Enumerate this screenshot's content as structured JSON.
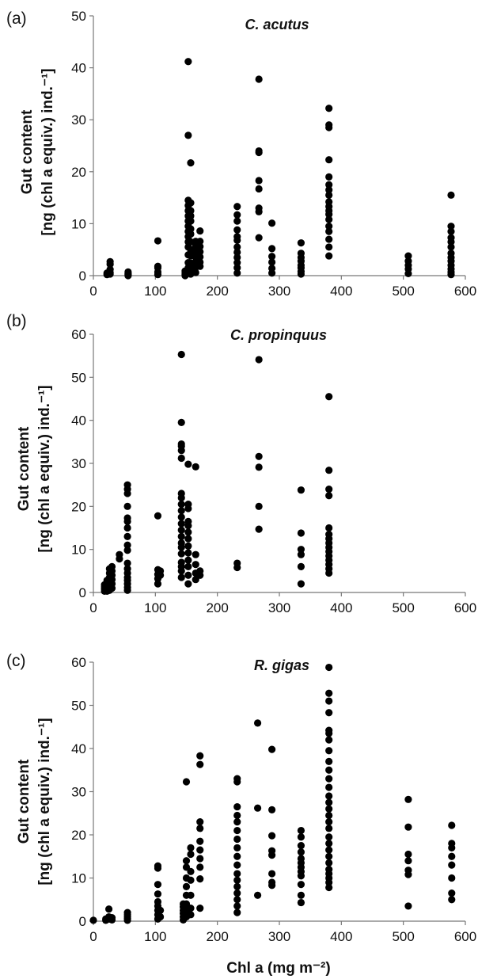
{
  "chart_data": [
    {
      "type": "scatter",
      "panel_label": "(a)",
      "title": "C. acutus",
      "ylabel_line1": "Gut  content",
      "ylabel_line2": "[ng (chl a equiv.) ind.⁻¹]",
      "xlabel": "",
      "xlim": [
        0,
        600
      ],
      "ylim": [
        0,
        50
      ],
      "xticks": [
        "0",
        "100",
        "200",
        "300",
        "400",
        "500",
        "600"
      ],
      "yticks": [
        "0",
        "10",
        "20",
        "30",
        "40",
        "50"
      ],
      "grid": false,
      "groups": [
        {
          "x": 22,
          "y": [
            0.2,
            0.5
          ]
        },
        {
          "x": 27,
          "y": [
            0.3,
            0.6,
            1.2,
            2.2,
            2.7
          ]
        },
        {
          "x": 56,
          "y": [
            0.0,
            0.2,
            0.4,
            0.7
          ]
        },
        {
          "x": 104,
          "y": [
            0.2,
            0.7,
            1.5,
            1.8,
            6.7
          ]
        },
        {
          "x": 148,
          "y": [
            0.0,
            0.2,
            0.5,
            0.9
          ]
        },
        {
          "x": 153,
          "y": [
            0.5,
            1.5,
            2.5,
            4.0,
            5.5,
            6.5,
            7.5,
            8.5,
            9.5,
            10.5,
            11.5,
            12.5,
            13.5,
            14.5,
            27.0,
            41.2
          ]
        },
        {
          "x": 157,
          "y": [
            0.3,
            1.2,
            2.4,
            3.8,
            5.0,
            6.5,
            8.0,
            9.0,
            10.5,
            11.5,
            12.5,
            14.0,
            21.7
          ]
        },
        {
          "x": 165,
          "y": [
            0.6,
            1.6,
            2.7,
            3.6,
            4.6,
            5.6,
            6.6
          ]
        },
        {
          "x": 172,
          "y": [
            1.8,
            2.6,
            3.6,
            4.6,
            5.6,
            6.6,
            8.6
          ]
        },
        {
          "x": 232,
          "y": [
            0.5,
            1.5,
            2.5,
            3.5,
            4.5,
            5.5,
            6.8,
            7.5,
            8.8,
            10.5,
            11.7,
            13.3
          ]
        },
        {
          "x": 267,
          "y": [
            7.3,
            12.3,
            13.0,
            16.7,
            18.3,
            23.7,
            24.0,
            37.8
          ]
        },
        {
          "x": 288,
          "y": [
            0.5,
            1.4,
            2.6,
            3.7,
            5.2,
            10.1
          ]
        },
        {
          "x": 335,
          "y": [
            0.3,
            0.8,
            1.5,
            2.0,
            2.8,
            3.5,
            4.3,
            6.3
          ]
        },
        {
          "x": 380,
          "y": [
            3.8,
            5.5,
            7.0,
            8.5,
            9.5,
            10.8,
            11.8,
            12.5,
            13.3,
            14.2,
            15.5,
            16.5,
            17.5,
            19.0,
            22.3,
            28.5,
            29.0,
            32.2
          ]
        },
        {
          "x": 508,
          "y": [
            0.4,
            1.3,
            2.0,
            2.8,
            3.8
          ]
        },
        {
          "x": 577,
          "y": [
            0.2,
            0.7,
            1.3,
            2.0,
            2.8,
            3.5,
            4.3,
            5.5,
            6.5,
            7.3,
            8.5,
            9.5,
            15.5
          ]
        }
      ]
    },
    {
      "type": "scatter",
      "panel_label": "(b)",
      "title": "C. propinquus",
      "ylabel_line1": "Gut  content",
      "ylabel_line2": "[ng (chl a equiv.) ind.⁻¹]",
      "xlabel": "",
      "xlim": [
        0,
        600
      ],
      "ylim": [
        0,
        60
      ],
      "xticks": [
        "0",
        "100",
        "200",
        "300",
        "400",
        "500",
        "600"
      ],
      "yticks": [
        "0",
        "10",
        "20",
        "30",
        "40",
        "50",
        "60"
      ],
      "grid": false,
      "groups": [
        {
          "x": 18,
          "y": [
            0.3,
            0.8,
            1.3,
            1.8
          ]
        },
        {
          "x": 22,
          "y": [
            0.3,
            0.8,
            1.5,
            2.2,
            2.8
          ]
        },
        {
          "x": 26,
          "y": [
            0.5,
            1.5,
            2.5,
            3.5,
            4.5,
            5.5
          ]
        },
        {
          "x": 30,
          "y": [
            1.0,
            2.0,
            3.0,
            4.0,
            5.0,
            6.0
          ]
        },
        {
          "x": 42,
          "y": [
            7.8,
            8.8
          ]
        },
        {
          "x": 55,
          "y": [
            0.5,
            1.2,
            2.0,
            2.8,
            3.5,
            4.5,
            5.5,
            6.8,
            9.8,
            11.0,
            13.0,
            15.0,
            16.5,
            17.3,
            20.0,
            23.0,
            24.0,
            25.0
          ]
        },
        {
          "x": 104,
          "y": [
            2.0,
            3.2,
            4.2,
            5.3,
            17.8
          ]
        },
        {
          "x": 108,
          "y": [
            4.0,
            5.0
          ]
        },
        {
          "x": 142,
          "y": [
            3.5,
            5.0,
            6.0,
            7.0,
            9.0,
            10.5,
            11.5,
            13.0,
            14.5,
            16.0,
            17.5,
            19.0,
            20.5,
            22.0,
            23.0,
            31.2,
            33.0,
            34.0,
            34.5,
            39.5,
            55.3
          ]
        },
        {
          "x": 153,
          "y": [
            2.0,
            4.0,
            6.0,
            7.5,
            9.2,
            10.8,
            12.5,
            14.0,
            15.5,
            16.5,
            19.5,
            20.5,
            29.8
          ]
        },
        {
          "x": 165,
          "y": [
            3.0,
            4.5,
            6.5,
            8.8,
            29.2
          ]
        },
        {
          "x": 172,
          "y": [
            4.0,
            5.0
          ]
        },
        {
          "x": 232,
          "y": [
            5.8,
            6.8
          ]
        },
        {
          "x": 267,
          "y": [
            14.7,
            20.0,
            29.1,
            31.6,
            54.1
          ]
        },
        {
          "x": 335,
          "y": [
            2.0,
            6.0,
            8.8,
            10.0,
            13.8,
            23.8
          ]
        },
        {
          "x": 380,
          "y": [
            4.5,
            5.5,
            6.5,
            7.5,
            8.5,
            9.5,
            10.5,
            11.5,
            12.5,
            13.5,
            15.0,
            22.5,
            24.0,
            28.4,
            45.5
          ]
        }
      ]
    },
    {
      "type": "scatter",
      "panel_label": "(c)",
      "title": "R. gigas",
      "ylabel_line1": "Gut  content",
      "ylabel_line2": "[ng (chl a equiv.) ind.⁻¹]",
      "xlabel": "Chl a (mg m⁻²)",
      "xlim": [
        0,
        600
      ],
      "ylim": [
        0,
        60
      ],
      "xticks": [
        "0",
        "100",
        "200",
        "300",
        "400",
        "500",
        "600"
      ],
      "yticks": [
        "0",
        "10",
        "20",
        "30",
        "40",
        "50",
        "60"
      ],
      "grid": false,
      "groups": [
        {
          "x": 0,
          "y": [
            0.2
          ]
        },
        {
          "x": 20,
          "y": [
            0.2,
            0.5
          ]
        },
        {
          "x": 25,
          "y": [
            0.5,
            1.0,
            2.8
          ]
        },
        {
          "x": 30,
          "y": [
            0.3,
            0.8
          ]
        },
        {
          "x": 55,
          "y": [
            0.2,
            0.6,
            1.0,
            1.5,
            2.0
          ]
        },
        {
          "x": 104,
          "y": [
            0.5,
            1.5,
            2.5,
            3.5,
            4.5,
            6.3,
            8.5,
            12.3,
            12.8
          ]
        },
        {
          "x": 108,
          "y": [
            1.0,
            2.5
          ]
        },
        {
          "x": 145,
          "y": [
            0.3,
            1.0,
            1.8,
            2.5,
            3.3,
            4.0
          ]
        },
        {
          "x": 150,
          "y": [
            1.0,
            2.5,
            4.0,
            6.0,
            8.0,
            10.0,
            12.5,
            14.0,
            32.3
          ]
        },
        {
          "x": 157,
          "y": [
            1.5,
            3.0,
            6.0,
            9.5,
            11.5,
            15.5,
            17.0
          ]
        },
        {
          "x": 172,
          "y": [
            3.0,
            9.8,
            12.5,
            14.5,
            16.5,
            18.5,
            21.5,
            23.0,
            36.3,
            38.3
          ]
        },
        {
          "x": 232,
          "y": [
            2.0,
            3.5,
            5.0,
            6.5,
            8.0,
            9.5,
            11.0,
            13.0,
            15.0,
            17.0,
            19.0,
            21.0,
            23.0,
            24.5,
            26.5,
            32.3,
            33.0
          ]
        },
        {
          "x": 265,
          "y": [
            6.0,
            26.2,
            45.9
          ]
        },
        {
          "x": 288,
          "y": [
            8.3,
            9.0,
            11.0,
            15.3,
            16.3,
            19.8,
            25.8,
            39.8
          ]
        },
        {
          "x": 335,
          "y": [
            4.3,
            6.0,
            8.5,
            10.5,
            11.5,
            12.5,
            13.5,
            14.5,
            16.0,
            17.5,
            19.5,
            21.0
          ]
        },
        {
          "x": 380,
          "y": [
            7.8,
            9.0,
            10.0,
            11.0,
            12.0,
            13.5,
            15.0,
            16.5,
            18.0,
            19.5,
            21.5,
            23.0,
            24.5,
            26.0,
            27.5,
            29.0,
            31.0,
            33.0,
            35.0,
            37.0,
            39.5,
            42.0,
            43.5,
            44.2,
            48.3,
            51.0,
            52.8,
            58.8
          ]
        },
        {
          "x": 508,
          "y": [
            3.5,
            10.8,
            11.8,
            14.0,
            15.5,
            21.8,
            28.2
          ]
        },
        {
          "x": 578,
          "y": [
            5.0,
            6.5,
            10.0,
            13.0,
            15.0,
            17.0,
            18.0,
            22.2
          ]
        }
      ]
    }
  ]
}
